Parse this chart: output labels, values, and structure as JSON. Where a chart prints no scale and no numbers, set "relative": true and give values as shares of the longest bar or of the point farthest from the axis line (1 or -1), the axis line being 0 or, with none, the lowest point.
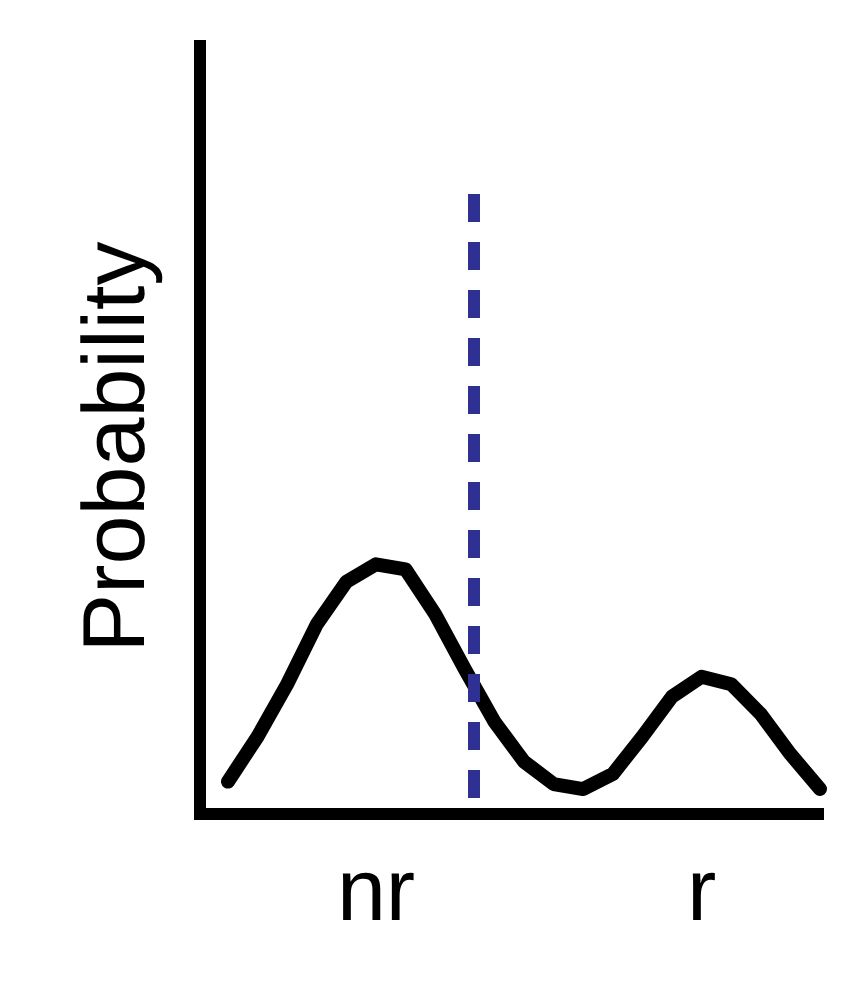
{
  "chart_data": {
    "type": "line",
    "relative": true,
    "ylabel": "Probability",
    "categories": [
      null,
      null,
      null,
      null,
      null,
      "nr",
      null,
      null,
      null,
      null,
      null,
      null,
      null,
      null,
      null,
      null,
      "r",
      null,
      null,
      null,
      null
    ],
    "series": [
      {
        "color": "#000000",
        "values": [
          0.13,
          0.31,
          0.52,
          0.76,
          0.93,
          1.0,
          0.98,
          0.8,
          0.58,
          0.37,
          0.21,
          0.12,
          0.1,
          0.16,
          0.31,
          0.47,
          0.55,
          0.52,
          0.4,
          0.24,
          0.1
        ]
      }
    ],
    "marker": "none",
    "line_style": "solid"
  }
}
